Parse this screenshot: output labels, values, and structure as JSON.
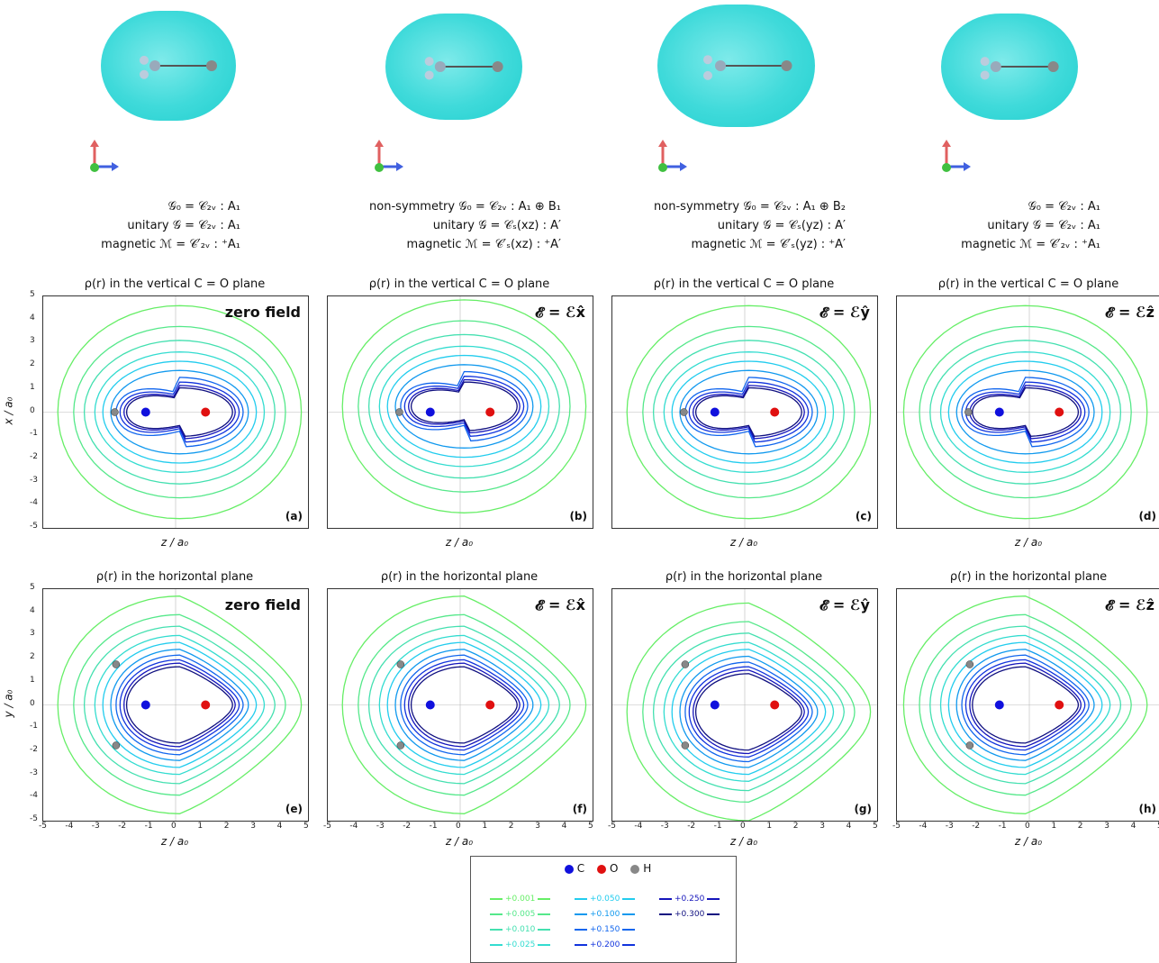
{
  "columns": [
    {
      "sym": [
        "𝒢₀ = 𝒞₂ᵥ : A₁",
        "unitary 𝒢 = 𝒞₂ᵥ : A₁",
        "magnetic ℳ = 𝒞′₂ᵥ : ⁺A₁"
      ],
      "top_title": "ρ(r) in the vertical C = O plane",
      "top_field": "zero field",
      "top_label": "(a)",
      "bot_title": "ρ(r) in the horizontal plane",
      "bot_field": "zero field",
      "bot_label": "(e)"
    },
    {
      "sym": [
        "non-symmetry 𝒢₀ = 𝒞₂ᵥ     : A₁ ⊕ B₁",
        "unitary 𝒢 = 𝒞ₛ(xz) : A′",
        "magnetic ℳ = 𝒞′ₛ(xz) : ⁺A′"
      ],
      "top_title": "ρ(r) in the vertical C = O plane",
      "top_field": "𝓔 = ℰx̂",
      "top_label": "(b)",
      "bot_title": "ρ(r) in the horizontal plane",
      "bot_field": "𝓔 = ℰx̂",
      "bot_label": "(f)"
    },
    {
      "sym": [
        "non-symmetry 𝒢₀ = 𝒞₂ᵥ     : A₁ ⊕ B₂",
        "unitary 𝒢 = 𝒞ₛ(yz) : A′",
        "magnetic ℳ = 𝒞′ₛ(yz) : ⁺A′"
      ],
      "top_title": "ρ(r) in the vertical C = O plane",
      "top_field": "𝓔 = ℰŷ",
      "top_label": "(c)",
      "bot_title": "ρ(r) in the horizontal plane",
      "bot_field": "𝓔 = ℰŷ",
      "bot_label": "(g)"
    },
    {
      "sym": [
        "𝒢₀ = 𝒞₂ᵥ : A₁",
        "unitary 𝒢 = 𝒞₂ᵥ : A₁",
        "magnetic ℳ = 𝒞′₂ᵥ : ⁺A₁"
      ],
      "top_title": "ρ(r) in the vertical C = O plane",
      "top_field": "𝓔 = ℰẑ",
      "top_label": "(d)",
      "bot_title": "ρ(r) in the horizontal plane",
      "bot_field": "𝓔 = ℰẑ",
      "bot_label": "(h)"
    }
  ],
  "axes": {
    "xlabel": "z / a₀",
    "ylabel_top": "x / a₀",
    "ylabel_bot": "y / a₀",
    "ticks": [
      "-5",
      "-4",
      "-3",
      "-2",
      "-1",
      "0",
      "1",
      "2",
      "3",
      "4",
      "5"
    ]
  },
  "legend": {
    "atoms": [
      {
        "label": "C",
        "color": "#1010dd"
      },
      {
        "label": "O",
        "color": "#e01010"
      },
      {
        "label": "H",
        "color": "#888888"
      }
    ],
    "levels": [
      {
        "label": "+0.001",
        "color": "#66ee66"
      },
      {
        "label": "+0.005",
        "color": "#55e88a"
      },
      {
        "label": "+0.010",
        "color": "#44e0b0"
      },
      {
        "label": "+0.025",
        "color": "#33dcd0"
      },
      {
        "label": "+0.050",
        "color": "#22ccee"
      },
      {
        "label": "+0.100",
        "color": "#1199ee"
      },
      {
        "label": "+0.150",
        "color": "#1166ee"
      },
      {
        "label": "+0.200",
        "color": "#1133dd"
      },
      {
        "label": "+0.250",
        "color": "#1515bb"
      },
      {
        "label": "+0.300",
        "color": "#101080"
      }
    ]
  },
  "atom_positions": {
    "C": [
      -1.13,
      0
    ],
    "O": [
      1.13,
      0
    ],
    "H_top": [
      -2.3,
      0
    ],
    "H_bot": [
      [
        -2.25,
        1.75
      ],
      [
        -2.25,
        -1.75
      ]
    ]
  }
}
